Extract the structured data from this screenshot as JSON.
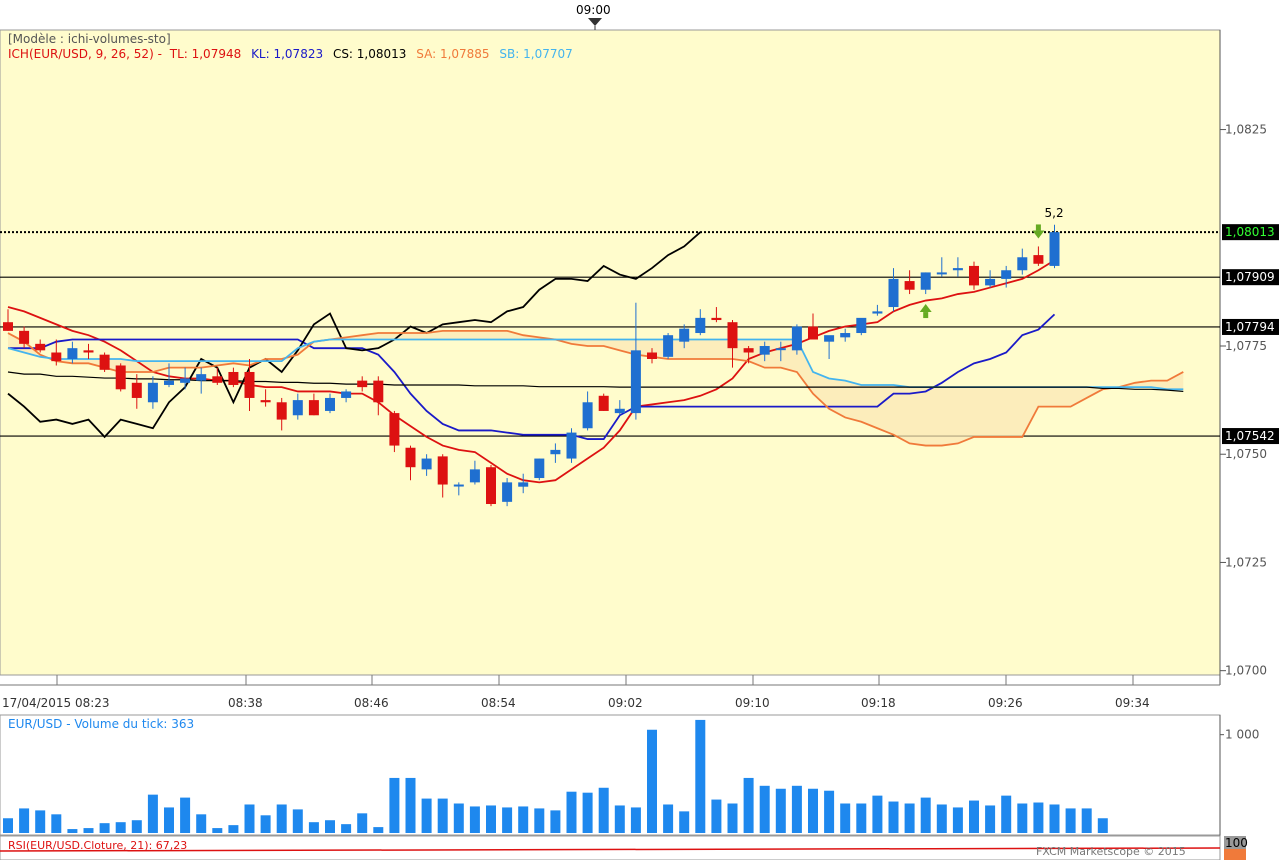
{
  "top_time_label": "09:00",
  "legend": {
    "model": "[Modèle : ichi-volumes-sto]",
    "ich": "ICH(EUR/USD, 9, 26, 52) -",
    "tl": "TL: 1,07948",
    "kl": "KL: 1,07823",
    "cs": "CS: 1,08013",
    "sa": "SA: 1,07885",
    "sb": "SB: 1,07707"
  },
  "volume_legend": "EUR/USD - Volume du tick: 363",
  "rsi_legend": "RSI(EUR/USD.Cloture, 21): 67,23",
  "copyright": "FXCM Marketscope © 2015",
  "rsi_top_label": "100",
  "annotation": "5,2",
  "colors": {
    "background": "#fffccc",
    "bull": "#1f6fd0",
    "bear": "#dd1111",
    "tenkan": "#dd1111",
    "kijun": "#1a1ac8",
    "chikou": "#000000",
    "span_a": "#f07a3a",
    "span_b": "#44b4ee",
    "volume": "#1e88ee"
  },
  "chart_data": [
    {
      "type": "candlestick",
      "title": "ICH(EUR/USD, 9, 26, 52)",
      "x_labels": [
        "17/04/2015 08:23",
        "08:38",
        "08:46",
        "08:54",
        "09:02",
        "09:10",
        "09:18",
        "09:26",
        "09:34"
      ],
      "y_ticks": [
        "1,0825",
        "1,0775",
        "1,0750",
        "1,0725",
        "1,0700"
      ],
      "ylim": [
        1.0699,
        1.0848
      ],
      "grid": false,
      "horizontal_levels": [
        {
          "value": 1.08013,
          "label": "1,08013",
          "style": "dotted",
          "highlight": true
        },
        {
          "value": 1.07909,
          "label": "1,07909"
        },
        {
          "value": 1.07794,
          "label": "1,07794"
        },
        {
          "value": 1.07542,
          "label": "1,07542"
        }
      ],
      "candles": [
        {
          "o": 1.07805,
          "h": 1.07835,
          "l": 1.07785,
          "c": 1.07785
        },
        {
          "o": 1.07785,
          "h": 1.07795,
          "l": 1.07745,
          "c": 1.07755
        },
        {
          "o": 1.07755,
          "h": 1.07765,
          "l": 1.07735,
          "c": 1.0774
        },
        {
          "o": 1.07735,
          "h": 1.07765,
          "l": 1.07705,
          "c": 1.07715
        },
        {
          "o": 1.0772,
          "h": 1.0776,
          "l": 1.0771,
          "c": 1.07745
        },
        {
          "o": 1.0774,
          "h": 1.07755,
          "l": 1.0772,
          "c": 1.07735
        },
        {
          "o": 1.0773,
          "h": 1.07735,
          "l": 1.0769,
          "c": 1.07695
        },
        {
          "o": 1.07705,
          "h": 1.0771,
          "l": 1.07645,
          "c": 1.0765
        },
        {
          "o": 1.07665,
          "h": 1.07685,
          "l": 1.07605,
          "c": 1.0763
        },
        {
          "o": 1.0762,
          "h": 1.0768,
          "l": 1.07605,
          "c": 1.07665
        },
        {
          "o": 1.0766,
          "h": 1.0771,
          "l": 1.07655,
          "c": 1.0767
        },
        {
          "o": 1.07665,
          "h": 1.077,
          "l": 1.0765,
          "c": 1.07675
        },
        {
          "o": 1.0767,
          "h": 1.077,
          "l": 1.0764,
          "c": 1.07685
        },
        {
          "o": 1.0768,
          "h": 1.077,
          "l": 1.0766,
          "c": 1.07665
        },
        {
          "o": 1.0769,
          "h": 1.077,
          "l": 1.07655,
          "c": 1.0766
        },
        {
          "o": 1.0769,
          "h": 1.0772,
          "l": 1.076,
          "c": 1.0763
        },
        {
          "o": 1.07625,
          "h": 1.0765,
          "l": 1.0761,
          "c": 1.0762
        },
        {
          "o": 1.0762,
          "h": 1.0763,
          "l": 1.07555,
          "c": 1.0758
        },
        {
          "o": 1.0759,
          "h": 1.0764,
          "l": 1.0758,
          "c": 1.07625
        },
        {
          "o": 1.07625,
          "h": 1.0764,
          "l": 1.0759,
          "c": 1.0759
        },
        {
          "o": 1.076,
          "h": 1.0764,
          "l": 1.07595,
          "c": 1.0763
        },
        {
          "o": 1.0763,
          "h": 1.0765,
          "l": 1.0762,
          "c": 1.07645
        },
        {
          "o": 1.0767,
          "h": 1.0768,
          "l": 1.07645,
          "c": 1.07655
        },
        {
          "o": 1.0767,
          "h": 1.0768,
          "l": 1.0759,
          "c": 1.0762
        },
        {
          "o": 1.07595,
          "h": 1.076,
          "l": 1.07505,
          "c": 1.0752
        },
        {
          "o": 1.07515,
          "h": 1.0752,
          "l": 1.0744,
          "c": 1.0747
        },
        {
          "o": 1.07465,
          "h": 1.075,
          "l": 1.0745,
          "c": 1.0749
        },
        {
          "o": 1.07495,
          "h": 1.075,
          "l": 1.074,
          "c": 1.0743
        },
        {
          "o": 1.0743,
          "h": 1.07435,
          "l": 1.07405,
          "c": 1.0743
        },
        {
          "o": 1.07435,
          "h": 1.07485,
          "l": 1.0743,
          "c": 1.07465
        },
        {
          "o": 1.0747,
          "h": 1.07475,
          "l": 1.0738,
          "c": 1.07385
        },
        {
          "o": 1.0739,
          "h": 1.07445,
          "l": 1.0738,
          "c": 1.07435
        },
        {
          "o": 1.07425,
          "h": 1.07455,
          "l": 1.0741,
          "c": 1.07435
        },
        {
          "o": 1.07445,
          "h": 1.0749,
          "l": 1.0744,
          "c": 1.0749
        },
        {
          "o": 1.075,
          "h": 1.07525,
          "l": 1.0748,
          "c": 1.0751
        },
        {
          "o": 1.0749,
          "h": 1.0756,
          "l": 1.0748,
          "c": 1.0755
        },
        {
          "o": 1.0756,
          "h": 1.07645,
          "l": 1.07555,
          "c": 1.0762
        },
        {
          "o": 1.07635,
          "h": 1.0764,
          "l": 1.076,
          "c": 1.076
        },
        {
          "o": 1.07595,
          "h": 1.07625,
          "l": 1.0759,
          "c": 1.07605
        },
        {
          "o": 1.07595,
          "h": 1.0785,
          "l": 1.0758,
          "c": 1.0774
        },
        {
          "o": 1.07735,
          "h": 1.07745,
          "l": 1.0771,
          "c": 1.0772
        },
        {
          "o": 1.07725,
          "h": 1.0778,
          "l": 1.0772,
          "c": 1.07775
        },
        {
          "o": 1.0776,
          "h": 1.078,
          "l": 1.07745,
          "c": 1.0779
        },
        {
          "o": 1.0778,
          "h": 1.07835,
          "l": 1.07775,
          "c": 1.07815
        },
        {
          "o": 1.07815,
          "h": 1.0784,
          "l": 1.07805,
          "c": 1.0781
        },
        {
          "o": 1.07805,
          "h": 1.0781,
          "l": 1.077,
          "c": 1.07745
        },
        {
          "o": 1.07745,
          "h": 1.0775,
          "l": 1.0771,
          "c": 1.07735
        },
        {
          "o": 1.0773,
          "h": 1.0776,
          "l": 1.07715,
          "c": 1.0775
        },
        {
          "o": 1.07745,
          "h": 1.0776,
          "l": 1.07715,
          "c": 1.07745
        },
        {
          "o": 1.0774,
          "h": 1.078,
          "l": 1.0773,
          "c": 1.07795
        },
        {
          "o": 1.07795,
          "h": 1.07825,
          "l": 1.0777,
          "c": 1.07765
        },
        {
          "o": 1.0776,
          "h": 1.0777,
          "l": 1.0772,
          "c": 1.07775
        },
        {
          "o": 1.0777,
          "h": 1.0779,
          "l": 1.0776,
          "c": 1.0778
        },
        {
          "o": 1.0778,
          "h": 1.0781,
          "l": 1.07775,
          "c": 1.07815
        },
        {
          "o": 1.07825,
          "h": 1.07845,
          "l": 1.0782,
          "c": 1.0783
        },
        {
          "o": 1.0784,
          "h": 1.0793,
          "l": 1.0783,
          "c": 1.07905
        },
        {
          "o": 1.079,
          "h": 1.07925,
          "l": 1.0787,
          "c": 1.0788
        },
        {
          "o": 1.0788,
          "h": 1.0792,
          "l": 1.0787,
          "c": 1.0792
        },
        {
          "o": 1.0792,
          "h": 1.07955,
          "l": 1.0791,
          "c": 1.0792
        },
        {
          "o": 1.07925,
          "h": 1.07955,
          "l": 1.0791,
          "c": 1.0793
        },
        {
          "o": 1.07935,
          "h": 1.07945,
          "l": 1.0788,
          "c": 1.0789
        },
        {
          "o": 1.0789,
          "h": 1.07925,
          "l": 1.07885,
          "c": 1.07905
        },
        {
          "o": 1.07905,
          "h": 1.07935,
          "l": 1.07885,
          "c": 1.07925
        },
        {
          "o": 1.07925,
          "h": 1.07975,
          "l": 1.07915,
          "c": 1.07955
        },
        {
          "o": 1.0796,
          "h": 1.0798,
          "l": 1.07935,
          "c": 1.0794
        },
        {
          "o": 1.07935,
          "h": 1.0803,
          "l": 1.0793,
          "c": 1.08013
        }
      ],
      "series": [
        {
          "name": "TL",
          "start": 0,
          "values": [
            1.0784,
            1.0783,
            1.07815,
            1.078,
            1.07785,
            1.07775,
            1.0776,
            1.0774,
            1.07715,
            1.0769,
            1.0768,
            1.07675,
            1.07675,
            1.0767,
            1.0767,
            1.0766,
            1.07655,
            1.07655,
            1.07645,
            1.07645,
            1.07645,
            1.0764,
            1.0764,
            1.0762,
            1.0759,
            1.07565,
            1.0754,
            1.0752,
            1.0751,
            1.07505,
            1.0748,
            1.07455,
            1.0744,
            1.07435,
            1.0744,
            1.07465,
            1.0749,
            1.07515,
            1.07555,
            1.0761,
            1.07615,
            1.0762,
            1.07625,
            1.07635,
            1.0765,
            1.07675,
            1.0772,
            1.07735,
            1.07745,
            1.07755,
            1.0777,
            1.07785,
            1.07795,
            1.078,
            1.07805,
            1.0783,
            1.07845,
            1.07855,
            1.0786,
            1.0787,
            1.07875,
            1.07885,
            1.07895,
            1.07905,
            1.07925,
            1.07948
          ]
        },
        {
          "name": "KL",
          "start": 0,
          "values": [
            1.07745,
            1.07745,
            1.07745,
            1.0776,
            1.07765,
            1.07765,
            1.07765,
            1.07765,
            1.07765,
            1.07765,
            1.07765,
            1.07765,
            1.07765,
            1.07765,
            1.07765,
            1.07765,
            1.07765,
            1.07765,
            1.07765,
            1.07745,
            1.07745,
            1.07745,
            1.07745,
            1.0773,
            1.0769,
            1.0764,
            1.076,
            1.0757,
            1.07555,
            1.07555,
            1.07555,
            1.0755,
            1.07545,
            1.07545,
            1.07545,
            1.07545,
            1.07535,
            1.07535,
            1.0759,
            1.0761,
            1.0761,
            1.0761,
            1.0761,
            1.0761,
            1.0761,
            1.0761,
            1.0761,
            1.0761,
            1.0761,
            1.0761,
            1.0761,
            1.0761,
            1.0761,
            1.0761,
            1.0761,
            1.0764,
            1.0764,
            1.07645,
            1.07665,
            1.0769,
            1.0771,
            1.0772,
            1.07735,
            1.07775,
            1.07788,
            1.07823
          ]
        },
        {
          "name": "CS",
          "start": 0,
          "values": [
            1.0764,
            1.0761,
            1.07575,
            1.0758,
            1.0757,
            1.0758,
            1.0754,
            1.0758,
            1.0757,
            1.0756,
            1.0762,
            1.07655,
            1.0772,
            1.077,
            1.0762,
            1.077,
            1.0772,
            1.0769,
            1.0774,
            1.078,
            1.07825,
            1.07745,
            1.0774,
            1.07745,
            1.07765,
            1.07795,
            1.0778,
            1.078,
            1.07805,
            1.0781,
            1.07805,
            1.0783,
            1.0784,
            1.0788,
            1.07905,
            1.07905,
            1.079,
            1.07935,
            1.07915,
            1.07905,
            1.0793,
            1.0796,
            1.0798,
            1.08013
          ]
        },
        {
          "name": "SA",
          "start": 0,
          "values": [
            1.0778,
            1.0776,
            1.0773,
            1.07715,
            1.0771,
            1.0771,
            1.077,
            1.0769,
            1.0769,
            1.0769,
            1.077,
            1.077,
            1.077,
            1.07705,
            1.0771,
            1.07705,
            1.0772,
            1.0772,
            1.0773,
            1.0776,
            1.07765,
            1.0777,
            1.07775,
            1.0778,
            1.0778,
            1.0778,
            1.0778,
            1.07785,
            1.07785,
            1.07785,
            1.07785,
            1.07785,
            1.07775,
            1.0777,
            1.07765,
            1.07755,
            1.0775,
            1.0775,
            1.0774,
            1.0773,
            1.07725,
            1.0772,
            1.0772,
            1.0772,
            1.0772,
            1.0772,
            1.07715,
            1.077,
            1.077,
            1.0769,
            1.0764,
            1.07605,
            1.07585,
            1.07575,
            1.0756,
            1.07545,
            1.07525,
            1.0752,
            1.0752,
            1.07525,
            1.0754,
            1.0754,
            1.0754,
            1.0754,
            1.0761,
            1.0761,
            1.0761,
            1.0763,
            1.0765,
            1.07655,
            1.07665,
            1.0767,
            1.0767,
            1.0769
          ]
        },
        {
          "name": "SB",
          "start": 0,
          "values": [
            1.07745,
            1.07735,
            1.07725,
            1.0772,
            1.0772,
            1.0772,
            1.0772,
            1.0772,
            1.07715,
            1.07715,
            1.07715,
            1.07715,
            1.07715,
            1.07715,
            1.07715,
            1.07715,
            1.07715,
            1.07715,
            1.07745,
            1.0776,
            1.07765,
            1.07765,
            1.07765,
            1.07765,
            1.07765,
            1.07765,
            1.07765,
            1.07765,
            1.07765,
            1.07765,
            1.07765,
            1.07765,
            1.07765,
            1.07765,
            1.07765,
            1.07765,
            1.07765,
            1.07765,
            1.07765,
            1.07765,
            1.07765,
            1.07765,
            1.07765,
            1.07765,
            1.07765,
            1.07765,
            1.07765,
            1.07765,
            1.07765,
            1.07765,
            1.0769,
            1.07675,
            1.0767,
            1.0766,
            1.0766,
            1.0766,
            1.07655,
            1.07655,
            1.07655,
            1.07655,
            1.07655,
            1.07655,
            1.07655,
            1.07655,
            1.07655,
            1.07655,
            1.07655,
            1.07655,
            1.07655,
            1.07655,
            1.07655,
            1.07655,
            1.0765,
            1.0765
          ]
        },
        {
          "name": "Chikou-like black line",
          "start": 0,
          "values": [
            1.0769,
            1.07685,
            1.07685,
            1.0768,
            1.0768,
            1.07678,
            1.07676,
            1.07676,
            1.07674,
            1.07674,
            1.07672,
            1.07672,
            1.0767,
            1.0767,
            1.0767,
            1.07668,
            1.07668,
            1.07666,
            1.07666,
            1.07664,
            1.07664,
            1.07662,
            1.07662,
            1.07662,
            1.0766,
            1.0766,
            1.0766,
            1.0766,
            1.0766,
            1.07658,
            1.07658,
            1.07658,
            1.07658,
            1.07656,
            1.07656,
            1.07656,
            1.07656,
            1.07656,
            1.07655,
            1.07655,
            1.07655,
            1.07655,
            1.07655,
            1.07655,
            1.07655,
            1.07655,
            1.07655,
            1.07655,
            1.07655,
            1.07655,
            1.07655,
            1.07655,
            1.07655,
            1.07655,
            1.07655,
            1.07655,
            1.07655,
            1.07655,
            1.07655,
            1.07655,
            1.07655,
            1.07655,
            1.07655,
            1.07655,
            1.07655,
            1.07655,
            1.07655,
            1.07655,
            1.07652,
            1.07652,
            1.0765,
            1.0765,
            1.07648,
            1.07645
          ]
        }
      ],
      "annotations": [
        {
          "label": "5,2",
          "index": 65
        }
      ],
      "arrows": [
        {
          "index": 57,
          "direction": "up"
        },
        {
          "index": 64,
          "direction": "down"
        }
      ]
    },
    {
      "type": "bar",
      "title": "EUR/USD - Volume du tick: 363",
      "y_ticks": [
        "1 000"
      ],
      "ylim": [
        0,
        1200
      ],
      "values": [
        150,
        250,
        230,
        190,
        40,
        50,
        100,
        110,
        130,
        390,
        260,
        360,
        190,
        50,
        80,
        290,
        180,
        290,
        240,
        110,
        130,
        90,
        200,
        60,
        560,
        560,
        350,
        350,
        300,
        270,
        280,
        260,
        270,
        250,
        230,
        420,
        410,
        460,
        280,
        260,
        1050,
        290,
        220,
        1150,
        340,
        300,
        560,
        480,
        450,
        480,
        450,
        430,
        300,
        300,
        380,
        320,
        300,
        360,
        290,
        260,
        330,
        280,
        380,
        300,
        310,
        290,
        250,
        250,
        150
      ]
    },
    {
      "type": "line",
      "title": "RSI(EUR/USD.Cloture, 21): 67,23",
      "y_ticks": [
        "100"
      ],
      "ylim": [
        0,
        100
      ],
      "values": [
        67.23
      ]
    }
  ]
}
